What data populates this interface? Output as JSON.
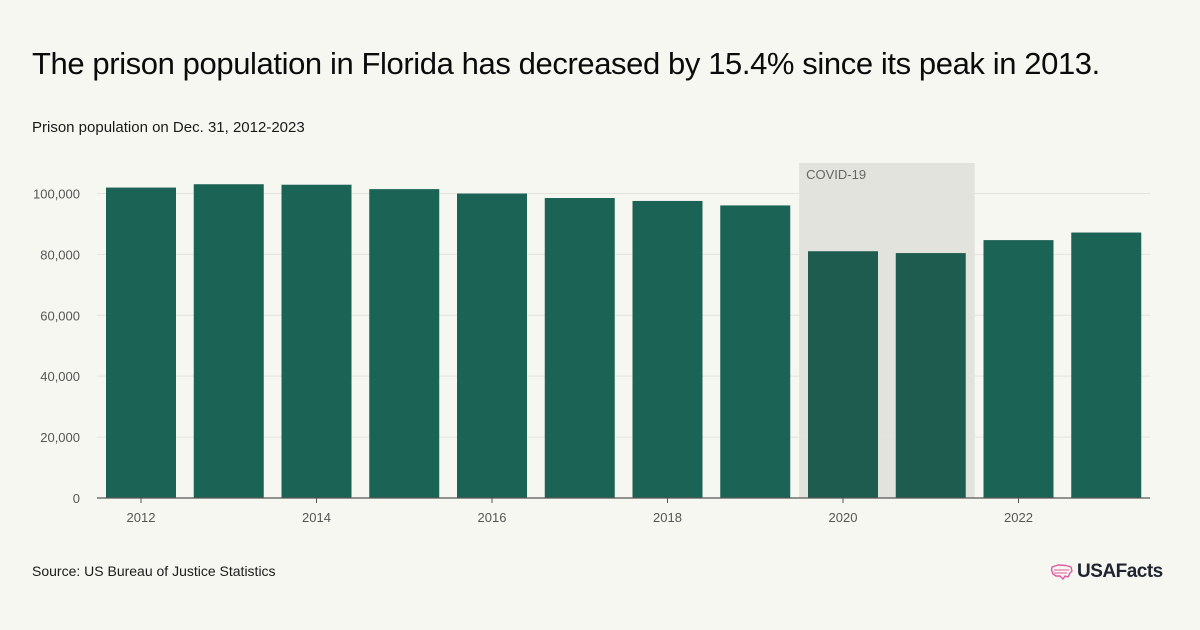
{
  "header": {
    "title": "The prison population in Florida has decreased by 15.4% since its peak in 2013.",
    "subtitle": "Prison population on Dec. 31, 2012-2023"
  },
  "footer": {
    "source": "Source: US Bureau of Justice Statistics",
    "logo_text": "USAFacts"
  },
  "colors": {
    "bar": "#1a6355",
    "bar_shaded": "#1e5c50",
    "shade": "#e3e3dd",
    "logo_accent": "#e05aa0"
  },
  "chart_data": {
    "type": "bar",
    "categories": [
      "2012",
      "2013",
      "2014",
      "2015",
      "2016",
      "2017",
      "2018",
      "2019",
      "2020",
      "2021",
      "2022",
      "2023"
    ],
    "values": [
      101930,
      103030,
      102870,
      101420,
      99970,
      98500,
      97540,
      96070,
      81030,
      80420,
      84680,
      87170
    ],
    "x_tick_labels": [
      "2012",
      "2014",
      "2016",
      "2018",
      "2020",
      "2022"
    ],
    "y_ticks": [
      0,
      20000,
      40000,
      60000,
      80000,
      100000
    ],
    "y_tick_labels": [
      "0",
      "20,000",
      "40,000",
      "60,000",
      "80,000",
      "100,000"
    ],
    "ylim": [
      0,
      110000
    ],
    "grid": true,
    "annotation": {
      "label": "COVID-19",
      "range": [
        "2020",
        "2021"
      ]
    }
  }
}
